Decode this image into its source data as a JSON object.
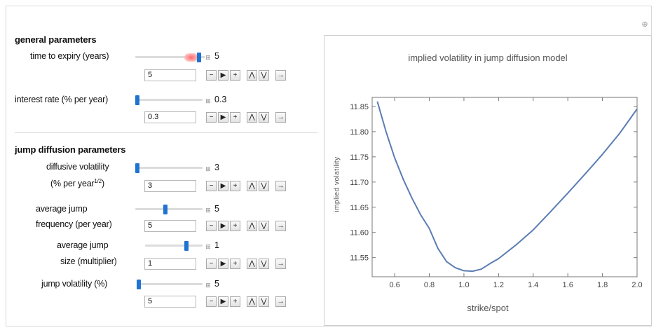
{
  "general": {
    "title": "general parameters",
    "time_label": "time to expiry (years)",
    "time_value": "5",
    "time_input": "5",
    "time_slider": 1.0,
    "rate_label": "interest rate (% per year)",
    "rate_value": "0.3",
    "rate_input": "0.3",
    "rate_slider": 0.0
  },
  "jump": {
    "title": "jump diffusion parameters",
    "diff_label1": "diffusive volatility",
    "diff_label2": "(% per year",
    "diff_label2_sup": "1/2",
    "diff_label2_end": ")",
    "diff_value": "3",
    "diff_input": "3",
    "diff_slider": 0.0,
    "freq_label1": "average jump",
    "freq_label2": "frequency (per year)",
    "freq_value": "5",
    "freq_input": "5",
    "freq_slider": 0.45,
    "size_label1": "average jump",
    "size_label2": "size (multiplier)",
    "size_value": "1",
    "size_input": "1",
    "size_slider": 0.75,
    "vol_label": "jump volatility (%)",
    "vol_value": "5",
    "vol_input": "5",
    "vol_slider": 0.0
  },
  "controls": {
    "minus": "−",
    "play": "▶",
    "plus": "+",
    "faster": "⋀",
    "slower": "⋁",
    "direction": "→",
    "toggle": "⊞",
    "corner": "⊕"
  },
  "colors": {
    "accent": "#1f74d1",
    "curve": "#5b7db3"
  },
  "chart_data": {
    "type": "line",
    "title": "implied volatility in jump diffusion model",
    "xlabel": "strike/spot",
    "ylabel": "implied volatility",
    "xlim": [
      0.47,
      2.0
    ],
    "ylim": [
      11.512,
      11.868
    ],
    "xticks": [
      0.6,
      0.8,
      1.0,
      1.2,
      1.4,
      1.6,
      1.8,
      2.0
    ],
    "xtick_labels": [
      "0.6",
      "0.8",
      "1.0",
      "1.2",
      "1.4",
      "1.6",
      "1.8",
      "2.0"
    ],
    "yticks": [
      11.55,
      11.6,
      11.65,
      11.7,
      11.75,
      11.8,
      11.85
    ],
    "ytick_labels": [
      "11.55",
      "11.60",
      "11.65",
      "11.70",
      "11.75",
      "11.80",
      "11.85"
    ],
    "series": [
      {
        "x": [
          0.5,
          0.55,
          0.6,
          0.65,
          0.7,
          0.75,
          0.8,
          0.85,
          0.9,
          0.95,
          1.0,
          1.05,
          1.1,
          1.15,
          1.2,
          1.3,
          1.4,
          1.5,
          1.6,
          1.7,
          1.8,
          1.9,
          2.0
        ],
        "y": [
          11.86,
          11.8,
          11.748,
          11.705,
          11.668,
          11.635,
          11.608,
          11.568,
          11.542,
          11.53,
          11.524,
          11.523,
          11.527,
          11.538,
          11.548,
          11.575,
          11.605,
          11.641,
          11.678,
          11.716,
          11.755,
          11.797,
          11.845
        ]
      }
    ]
  }
}
